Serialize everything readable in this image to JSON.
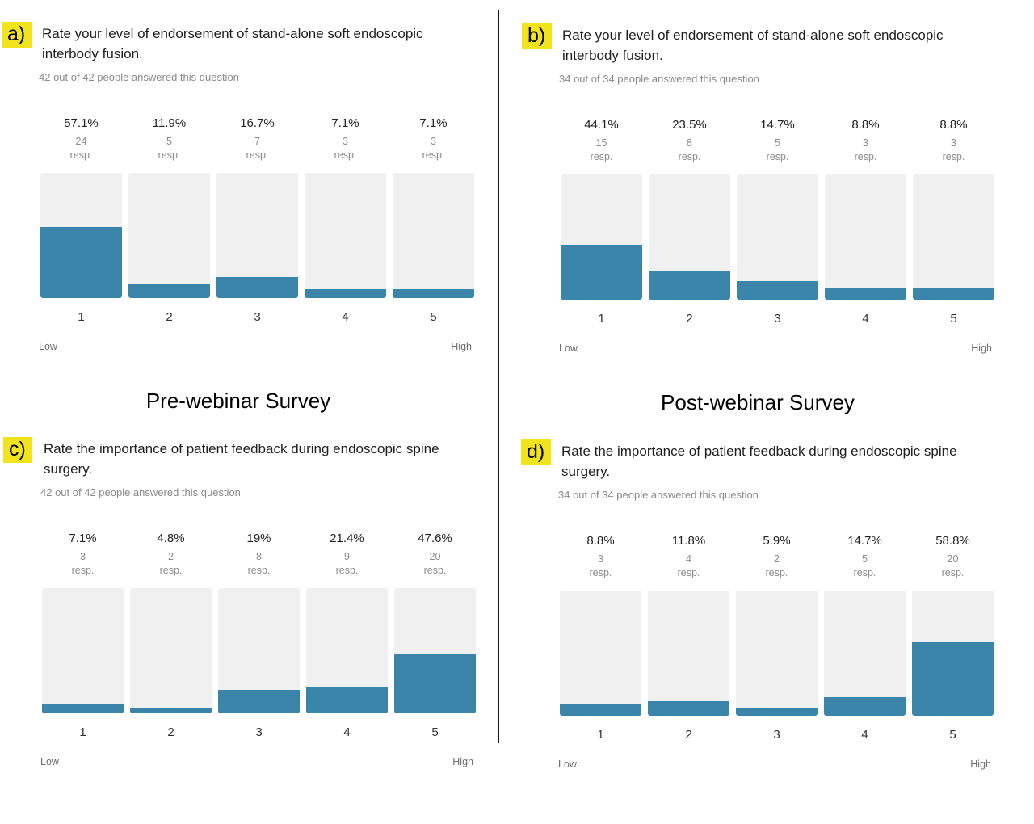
{
  "section_titles": {
    "pre": "Pre-webinar Survey",
    "post": "Post-webinar Survey"
  },
  "chart_data": [
    {
      "type": "bar",
      "panel_label": "a)",
      "title": "Rate your level of endorsement of stand-alone soft endoscopic interbody fusion.",
      "subtitle": "42 out of 42 people answered this question",
      "categories": [
        "1",
        "2",
        "3",
        "4",
        "5"
      ],
      "percent": [
        "57.1%",
        "11.9%",
        "16.7%",
        "7.1%",
        "7.1%"
      ],
      "values": [
        57.1,
        11.9,
        16.7,
        7.1,
        7.1
      ],
      "counts": [
        "24",
        "5",
        "7",
        "3",
        "3"
      ],
      "count_unit": "resp.",
      "scale_low": "Low",
      "scale_high": "High",
      "ylim": [
        0,
        100
      ],
      "accent": "#3b84aa",
      "track": "#f0f0f0"
    },
    {
      "type": "bar",
      "panel_label": "b)",
      "title": "Rate your level of endorsement of stand-alone soft endoscopic interbody fusion.",
      "subtitle": "34 out of 34 people answered this question",
      "categories": [
        "1",
        "2",
        "3",
        "4",
        "5"
      ],
      "percent": [
        "44.1%",
        "23.5%",
        "14.7%",
        "8.8%",
        "8.8%"
      ],
      "values": [
        44.1,
        23.5,
        14.7,
        8.8,
        8.8
      ],
      "counts": [
        "15",
        "8",
        "5",
        "3",
        "3"
      ],
      "count_unit": "resp.",
      "scale_low": "Low",
      "scale_high": "High",
      "ylim": [
        0,
        100
      ],
      "accent": "#3b84aa",
      "track": "#f0f0f0"
    },
    {
      "type": "bar",
      "panel_label": "c)",
      "title": "Rate the importance of patient feedback during endoscopic spine surgery.",
      "subtitle": "42 out of 42 people answered this question",
      "categories": [
        "1",
        "2",
        "3",
        "4",
        "5"
      ],
      "percent": [
        "7.1%",
        "4.8%",
        "19%",
        "21.4%",
        "47.6%"
      ],
      "values": [
        7.1,
        4.8,
        19,
        21.4,
        47.6
      ],
      "counts": [
        "3",
        "2",
        "8",
        "9",
        "20"
      ],
      "count_unit": "resp.",
      "scale_low": "Low",
      "scale_high": "High",
      "ylim": [
        0,
        100
      ],
      "accent": "#3b84aa",
      "track": "#f0f0f0"
    },
    {
      "type": "bar",
      "panel_label": "d)",
      "title": "Rate the importance of patient feedback during endoscopic spine surgery.",
      "subtitle": "34 out of 34 people answered this question",
      "categories": [
        "1",
        "2",
        "3",
        "4",
        "5"
      ],
      "percent": [
        "8.8%",
        "11.8%",
        "5.9%",
        "14.7%",
        "58.8%"
      ],
      "values": [
        8.8,
        11.8,
        5.9,
        14.7,
        58.8
      ],
      "counts": [
        "3",
        "4",
        "2",
        "5",
        "20"
      ],
      "count_unit": "resp.",
      "scale_low": "Low",
      "scale_high": "High",
      "ylim": [
        0,
        100
      ],
      "accent": "#3b84aa",
      "track": "#f0f0f0"
    }
  ]
}
